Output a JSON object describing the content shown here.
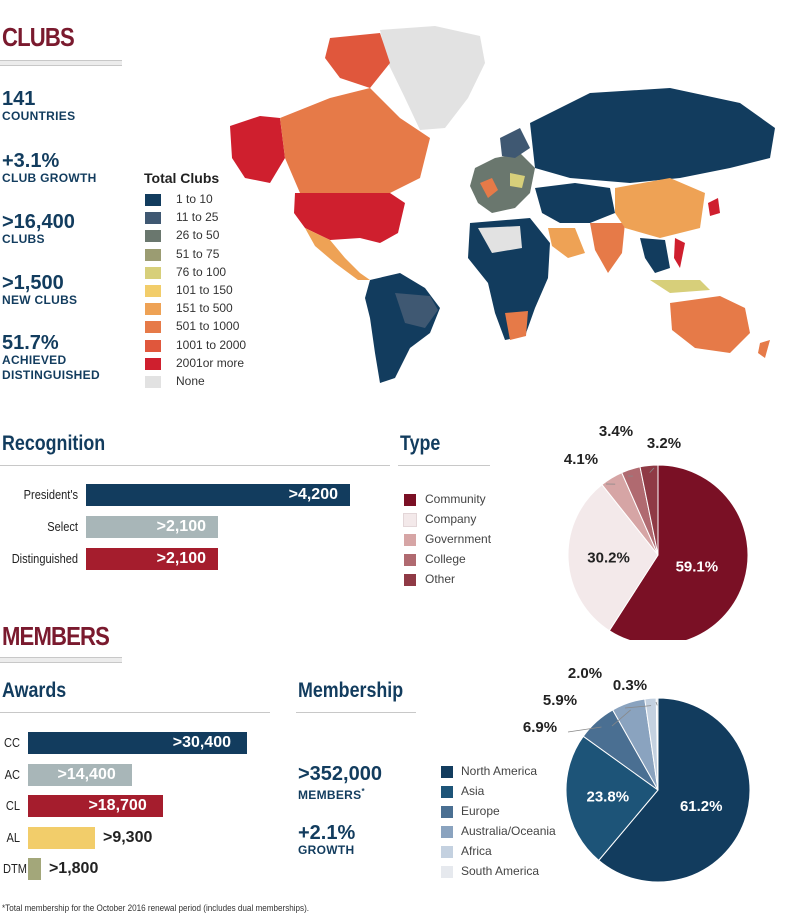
{
  "clubs": {
    "title": "CLUBS",
    "stats": [
      {
        "value": "141",
        "label": "COUNTRIES"
      },
      {
        "value": "+3.1%",
        "label": "CLUB GROWTH"
      },
      {
        "value": ">16,400",
        "label": "CLUBS"
      },
      {
        "value": ">1,500",
        "label": "NEW CLUBS"
      },
      {
        "value": "51.7%",
        "label": "ACHIEVED DISTINGUISHED"
      }
    ],
    "map_legend": {
      "title": "Total Clubs",
      "items": [
        {
          "label": "1 to 10",
          "color": "#123c5e"
        },
        {
          "label": "11 to 25",
          "color": "#3f5872"
        },
        {
          "label": "26 to 50",
          "color": "#6a776e"
        },
        {
          "label": "51 to 75",
          "color": "#9b9c72"
        },
        {
          "label": "76 to 100",
          "color": "#d7cf7a"
        },
        {
          "label": "101 to 150",
          "color": "#f2cd6a"
        },
        {
          "label": "151 to 500",
          "color": "#eea255"
        },
        {
          "label": "501 to 1000",
          "color": "#e67a48"
        },
        {
          "label": "1001 to 2000",
          "color": "#e0573c"
        },
        {
          "label": "2001or more",
          "color": "#cf1f2e"
        },
        {
          "label": "None",
          "color": "#e2e2e2"
        }
      ]
    }
  },
  "recognition": {
    "title": "Recognition",
    "bars": [
      {
        "label": "President's",
        "value_label": ">4,200",
        "value": 4200,
        "color": "#123c5e"
      },
      {
        "label": "Select",
        "value_label": ">2,100",
        "value": 2100,
        "color": "#a8b6b8"
      },
      {
        "label": "Distinguished",
        "value_label": ">2,100",
        "value": 2100,
        "color": "#a51d2d"
      }
    ]
  },
  "type": {
    "title": "Type",
    "legend": [
      {
        "label": "Community",
        "color": "#7a1025"
      },
      {
        "label": "Company",
        "color": "#f3e9ea"
      },
      {
        "label": "Government",
        "color": "#d6a5a5"
      },
      {
        "label": "College",
        "color": "#b06a70"
      },
      {
        "label": "Other",
        "color": "#8f3a45"
      }
    ]
  },
  "members": {
    "title": "MEMBERS",
    "awards_title": "Awards",
    "awards": [
      {
        "label": "CC",
        "value_label": ">30,400",
        "value": 30400,
        "color": "#123c5e"
      },
      {
        "label": "AC",
        "value_label": ">14,400",
        "value": 14400,
        "color": "#a8b6b8"
      },
      {
        "label": "CL",
        "value_label": ">18,700",
        "value": 18700,
        "color": "#a51d2d"
      },
      {
        "label": "AL",
        "value_label": ">9,300",
        "value": 9300,
        "color": "#f2cd6a"
      },
      {
        "label": "DTM",
        "value_label": ">1,800",
        "value": 1800,
        "color": "#a3a77a"
      }
    ],
    "membership_title": "Membership",
    "membership_stats": [
      {
        "value": ">352,000",
        "label": "MEMBERS",
        "note": "*"
      },
      {
        "value": "+2.1%",
        "label": "GROWTH",
        "note": ""
      }
    ],
    "region_legend": [
      {
        "label": "North America",
        "color": "#123c5e"
      },
      {
        "label": "Asia",
        "color": "#1d5478"
      },
      {
        "label": "Europe",
        "color": "#4a6f92"
      },
      {
        "label": "Australia/Oceania",
        "color": "#8aa3bf"
      },
      {
        "label": "Africa",
        "color": "#c4d1e0"
      },
      {
        "label": "South America",
        "color": "#e6e9ee"
      }
    ]
  },
  "footnote": "*Total membership for the October 2016 renewal period (includes dual memberships).",
  "chart_data": [
    {
      "type": "bar",
      "title": "Recognition",
      "orientation": "horizontal",
      "categories": [
        "President's",
        "Select",
        "Distinguished"
      ],
      "values": [
        4200,
        2100,
        2100
      ],
      "value_labels": [
        ">4,200",
        ">2,100",
        ">2,100"
      ]
    },
    {
      "type": "pie",
      "title": "Type",
      "labels": [
        "Community",
        "Company",
        "Government",
        "College",
        "Other"
      ],
      "values": [
        59.1,
        30.2,
        4.1,
        3.4,
        3.2
      ],
      "value_labels": [
        "59.1%",
        "30.2%",
        "4.1%",
        "3.4%",
        "3.2%"
      ],
      "colors": [
        "#7a1025",
        "#f3e9ea",
        "#d6a5a5",
        "#b06a70",
        "#8f3a45"
      ]
    },
    {
      "type": "bar",
      "title": "Awards",
      "orientation": "horizontal",
      "categories": [
        "CC",
        "AC",
        "CL",
        "AL",
        "DTM"
      ],
      "values": [
        30400,
        14400,
        18700,
        9300,
        1800
      ],
      "value_labels": [
        ">30,400",
        ">14,400",
        ">18,700",
        ">9,300",
        ">1,800"
      ]
    },
    {
      "type": "pie",
      "title": "Membership",
      "labels": [
        "North America",
        "Asia",
        "Europe",
        "Australia/Oceania",
        "Africa",
        "South America"
      ],
      "values": [
        61.2,
        23.8,
        6.9,
        5.9,
        2.0,
        0.3
      ],
      "value_labels": [
        "61.2%",
        "23.8%",
        "6.9%",
        "5.9%",
        "2.0%",
        "0.3%"
      ],
      "colors": [
        "#123c5e",
        "#1d5478",
        "#4a6f92",
        "#8aa3bf",
        "#c4d1e0",
        "#e6e9ee"
      ]
    }
  ]
}
